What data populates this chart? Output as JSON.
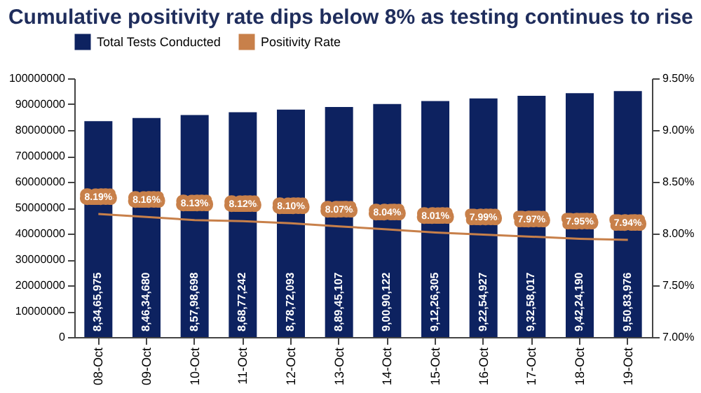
{
  "chart_data": {
    "type": "bar",
    "title": "Cumulative positivity rate dips below 8% as testing continues to rise",
    "categories": [
      "08-Oct",
      "09-Oct",
      "10-Oct",
      "11-Oct",
      "12-Oct",
      "13-Oct",
      "14-Oct",
      "15-Oct",
      "16-Oct",
      "17-Oct",
      "18-Oct",
      "19-Oct"
    ],
    "series": [
      {
        "name": "Total Tests Conducted",
        "color": "#0d2260",
        "values": [
          83465975,
          84634680,
          85798698,
          86877242,
          87872093,
          88945107,
          90090122,
          91226305,
          92254927,
          93258017,
          94224190,
          95083976
        ],
        "value_labels": [
          "8,34,65,975",
          "8,46,34,680",
          "8,57,98,698",
          "8,68,77,242",
          "8,78,72,093",
          "8,89,45,107",
          "9,00,90,122",
          "9,12,26,305",
          "9,22,54,927",
          "9,32,58,017",
          "9,42,24,190",
          "9,50,83,976"
        ]
      },
      {
        "name": "Positivity Rate",
        "type": "line",
        "axis": "y2",
        "color": "#c8804a",
        "values": [
          8.19,
          8.16,
          8.13,
          8.12,
          8.1,
          8.07,
          8.04,
          8.01,
          7.99,
          7.97,
          7.95,
          7.94
        ],
        "value_labels": [
          "8.19%",
          "8.16%",
          "8.13%",
          "8.12%",
          "8.10%",
          "8.07%",
          "8.04%",
          "8.01%",
          "7.99%",
          "7.97%",
          "7.95%",
          "7.94%"
        ]
      }
    ],
    "ylim": [
      0,
      100000000
    ],
    "yticks": [
      0,
      10000000,
      20000000,
      30000000,
      40000000,
      50000000,
      60000000,
      70000000,
      80000000,
      90000000,
      100000000
    ],
    "y2lim": [
      7.0,
      9.5
    ],
    "y2ticks": [
      {
        "value": 7.0,
        "label": "7.00%"
      },
      {
        "value": 7.5,
        "label": "7.50%"
      },
      {
        "value": 8.0,
        "label": "8.00%"
      },
      {
        "value": 8.5,
        "label": "8.50%"
      },
      {
        "value": 9.0,
        "label": "9.00%"
      },
      {
        "value": 9.5,
        "label": "9.50%"
      }
    ],
    "legend": "top",
    "grid": false
  }
}
